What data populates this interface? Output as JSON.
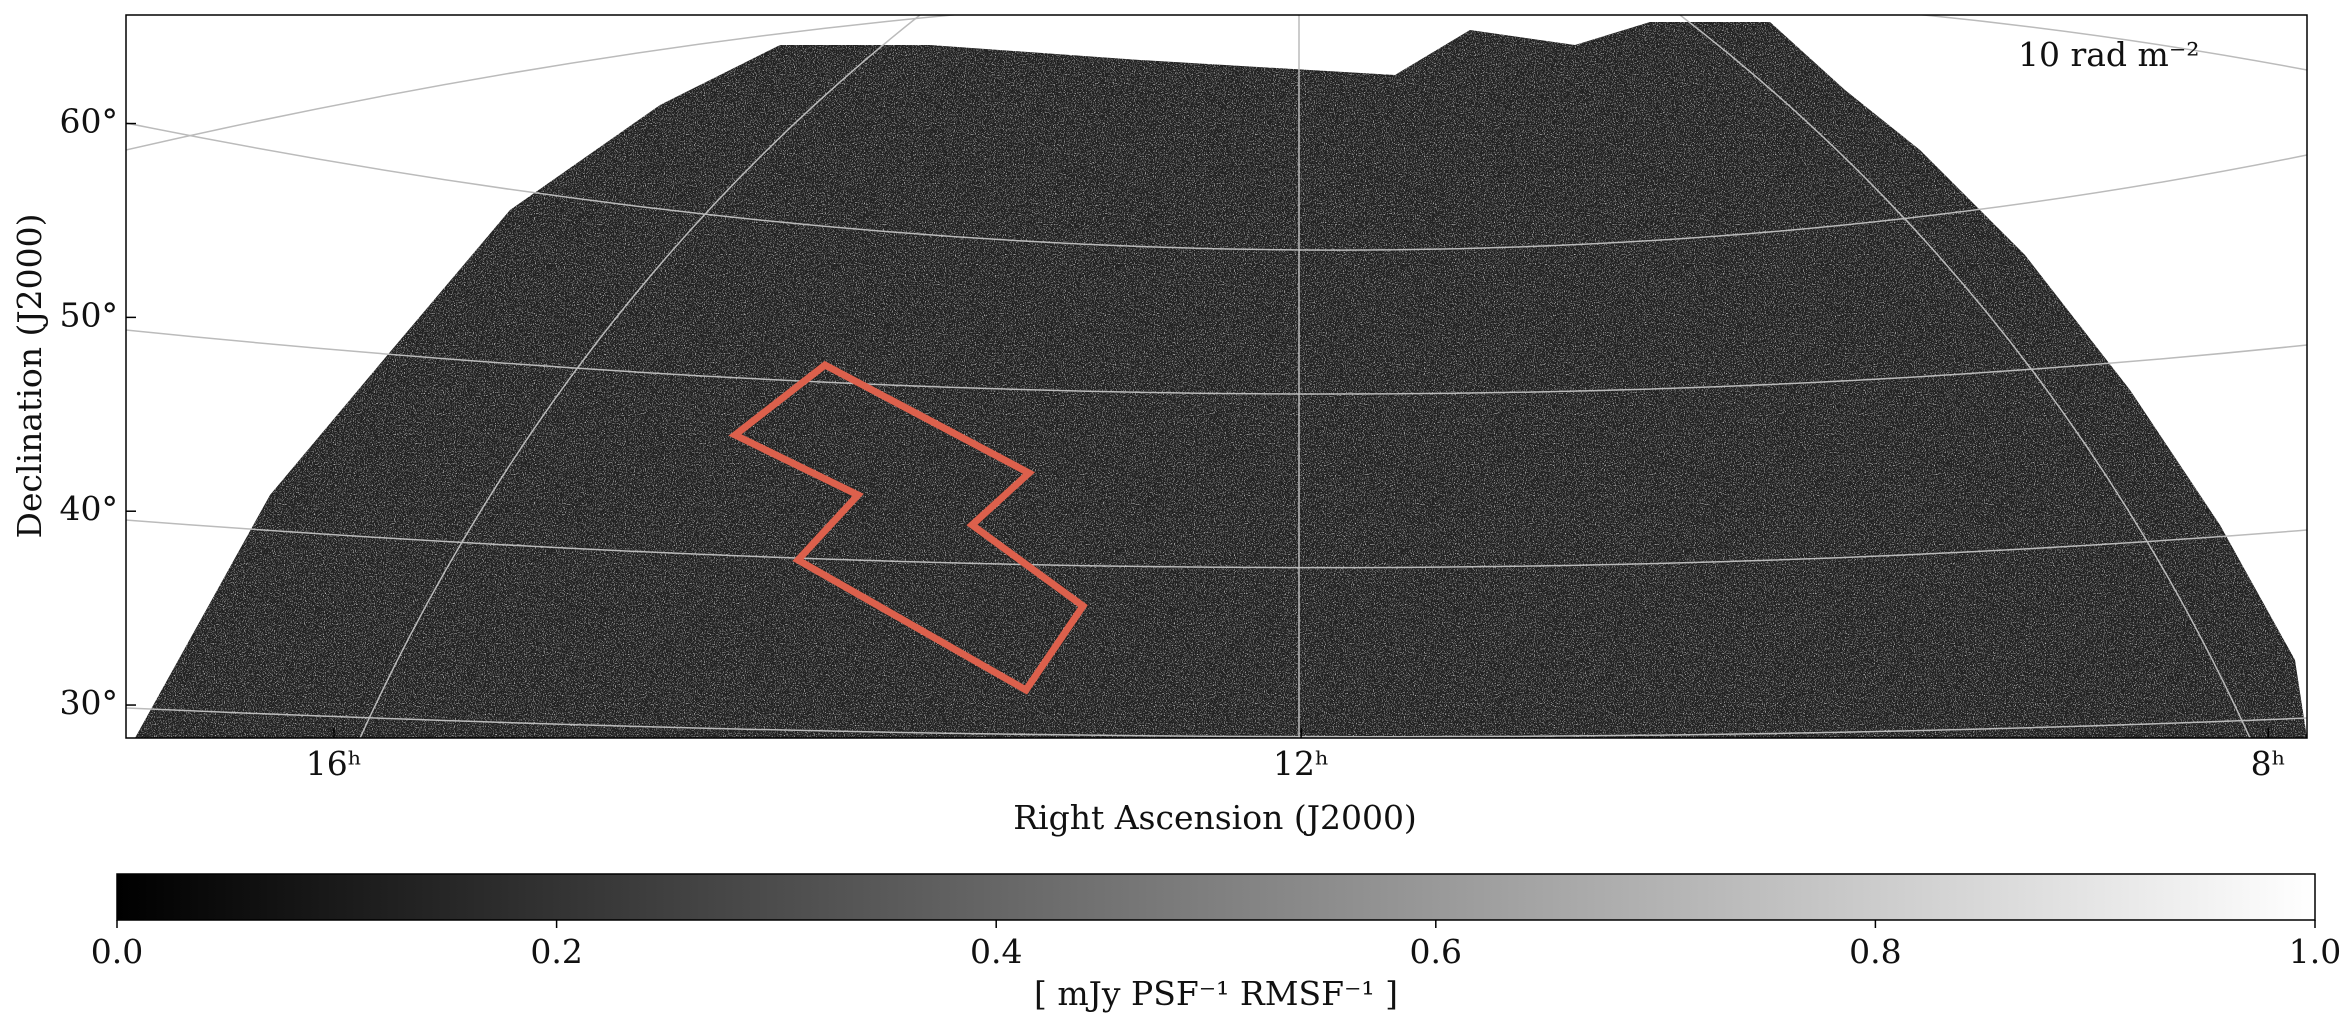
{
  "chart_data": {
    "type": "image",
    "annotation": "10 rad m⁻²",
    "xlabel": "Right Ascension (J2000)",
    "ylabel": "Declination (J2000)",
    "xlim": [
      16.86,
      7.84
    ],
    "xticks": [
      {
        "value": 16,
        "label": "16ʰ"
      },
      {
        "value": 12,
        "label": "12ʰ"
      },
      {
        "value": 8,
        "label": "8ʰ"
      }
    ],
    "ylim": [
      28.3,
      65.6
    ],
    "yticks": [
      {
        "value": 30,
        "label": "30°"
      },
      {
        "value": 40,
        "label": "40°"
      },
      {
        "value": 50,
        "label": "50°"
      },
      {
        "value": 60,
        "label": "60°"
      }
    ],
    "grid": true,
    "colorbar": {
      "label": "[ mJy PSF⁻¹ RMSF⁻¹ ]",
      "colormap": "gray",
      "lim": [
        0,
        1
      ],
      "ticks": [
        {
          "value": 0,
          "label": "0.0"
        },
        0.2,
        0.4,
        0.6,
        0.8,
        {
          "value": 1,
          "label": "1.0"
        }
      ]
    }
  }
}
